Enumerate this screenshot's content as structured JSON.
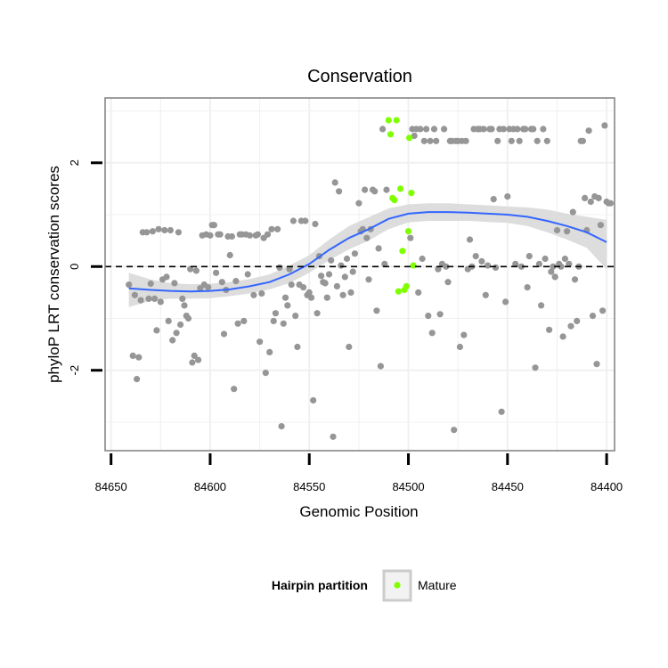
{
  "chart_data": {
    "type": "scatter",
    "title": "Conservation",
    "xlabel": "Genomic Position",
    "ylabel": "phyloP LRT conservation scores",
    "x_reversed": true,
    "xlim": [
      84653,
      84396
    ],
    "ylim": [
      -3.55,
      3.25
    ],
    "x_ticks": [
      84650,
      84600,
      84550,
      84500,
      84450,
      84400
    ],
    "y_ticks": [
      -2,
      0,
      2
    ],
    "y_ticks_rotated": true,
    "grid": true,
    "reference_line": {
      "y": 0,
      "style": "dashed",
      "color": "#000000"
    },
    "legend": {
      "title": "Hairpin partition",
      "position": "bottom",
      "entries": [
        {
          "label": "Mature",
          "color": "#7fff00"
        }
      ]
    },
    "colors": {
      "other": "#969696",
      "mature": "#7fff00",
      "smooth": "#3366ff",
      "ribbon": "#d9d9d9",
      "grid": "#f0f0f0",
      "border": "#7f7f7f"
    },
    "series": [
      {
        "points": [
          [
            84641,
            -0.35
          ],
          [
            84639,
            -1.72
          ],
          [
            84638,
            -0.55
          ],
          [
            84637,
            -2.17
          ],
          [
            84636,
            -1.75
          ],
          [
            84635,
            -0.65
          ],
          [
            84634,
            0.66
          ],
          [
            84632,
            0.66
          ],
          [
            84631,
            -0.62
          ],
          [
            84630,
            -0.33
          ],
          [
            84629,
            0.68
          ],
          [
            84628,
            -0.62
          ],
          [
            84627,
            -1.23
          ],
          [
            84626,
            0.72
          ],
          [
            84625,
            -0.68
          ],
          [
            84624,
            -0.25
          ],
          [
            84623,
            0.7
          ],
          [
            84622,
            -0.2
          ],
          [
            84621,
            -1.05
          ],
          [
            84620,
            0.7
          ],
          [
            84619,
            -1.42
          ],
          [
            84618,
            -0.32
          ],
          [
            84617,
            -1.28
          ],
          [
            84616,
            0.66
          ],
          [
            84615,
            -1.12
          ],
          [
            84614,
            -0.62
          ],
          [
            84613,
            -0.75
          ],
          [
            84612,
            -0.95
          ],
          [
            84611,
            -1.0
          ],
          [
            84610,
            -0.05
          ],
          [
            84609,
            -1.85
          ],
          [
            84608,
            -1.72
          ],
          [
            84607,
            -0.08
          ],
          [
            84606,
            -1.8
          ],
          [
            84605,
            -0.42
          ],
          [
            84604,
            0.6
          ],
          [
            84603,
            -0.35
          ],
          [
            84602,
            0.62
          ],
          [
            84601,
            -0.4
          ],
          [
            84600,
            0.6
          ],
          [
            84599,
            0.8
          ],
          [
            84598,
            0.8
          ],
          [
            84597,
            -0.12
          ],
          [
            84596,
            0.62
          ],
          [
            84595,
            0.62
          ],
          [
            84594,
            -0.3
          ],
          [
            84593,
            -1.3
          ],
          [
            84592,
            -0.45
          ],
          [
            84591,
            0.58
          ],
          [
            84590,
            0.22
          ],
          [
            84589,
            0.58
          ],
          [
            84588,
            -2.36
          ],
          [
            84587,
            -0.28
          ],
          [
            84586,
            -1.1
          ],
          [
            84585,
            0.62
          ],
          [
            84584,
            0.62
          ],
          [
            84583,
            -1.05
          ],
          [
            84582,
            0.62
          ],
          [
            84581,
            -0.15
          ],
          [
            84580,
            0.6
          ],
          [
            84578,
            -0.55
          ],
          [
            84577,
            0.6
          ],
          [
            84576,
            0.62
          ],
          [
            84575,
            -1.45
          ],
          [
            84574,
            -0.52
          ],
          [
            84573,
            0.55
          ],
          [
            84572,
            -2.05
          ],
          [
            84571,
            0.62
          ],
          [
            84570,
            -1.65
          ],
          [
            84569,
            0.72
          ],
          [
            84568,
            -1.05
          ],
          [
            84567,
            -0.9
          ],
          [
            84566,
            0.72
          ],
          [
            84565,
            -0.02
          ],
          [
            84564,
            -3.08
          ],
          [
            84563,
            -1.1
          ],
          [
            84562,
            -0.6
          ],
          [
            84561,
            -0.75
          ],
          [
            84560,
            -0.05
          ],
          [
            84559,
            -0.35
          ],
          [
            84558,
            0.88
          ],
          [
            84557,
            -0.95
          ],
          [
            84556,
            -1.55
          ],
          [
            84555,
            -0.35
          ],
          [
            84554,
            0.88
          ],
          [
            84553,
            -0.4
          ],
          [
            84552,
            0.88
          ],
          [
            84551,
            -0.55
          ],
          [
            84550,
            -0.5
          ],
          [
            84549,
            -0.6
          ],
          [
            84548,
            -2.58
          ],
          [
            84547,
            0.82
          ],
          [
            84546,
            -0.9
          ],
          [
            84545,
            0.2
          ],
          [
            84544,
            -0.18
          ],
          [
            84543,
            -0.3
          ],
          [
            84542,
            -0.32
          ],
          [
            84541,
            -0.6
          ],
          [
            84540,
            -0.15
          ],
          [
            84539,
            0.12
          ],
          [
            84538,
            -3.28
          ],
          [
            84537,
            1.62
          ],
          [
            84536,
            -0.38
          ],
          [
            84535,
            1.45
          ],
          [
            84534,
            0.02
          ],
          [
            84533,
            -0.55
          ],
          [
            84532,
            -0.2
          ],
          [
            84531,
            0.15
          ],
          [
            84530,
            -1.55
          ],
          [
            84529,
            -0.5
          ],
          [
            84528,
            -0.1
          ],
          [
            84527,
            0.25
          ],
          [
            84525,
            1.22
          ],
          [
            84524,
            0.68
          ],
          [
            84523,
            0.72
          ],
          [
            84522,
            1.48
          ],
          [
            84521,
            0.55
          ],
          [
            84520,
            -0.25
          ],
          [
            84519,
            0.72
          ],
          [
            84518,
            1.48
          ],
          [
            84517,
            1.45
          ],
          [
            84516,
            -0.85
          ],
          [
            84515,
            0.35
          ],
          [
            84514,
            -1.92
          ],
          [
            84513,
            2.65
          ],
          [
            84512,
            0.05
          ],
          [
            84511,
            1.48
          ],
          [
            84499,
            0.55
          ],
          [
            84498,
            2.65
          ],
          [
            84497,
            2.52
          ],
          [
            84496,
            2.65
          ],
          [
            84495,
            -0.5
          ],
          [
            84494,
            2.65
          ],
          [
            84493,
            0.15
          ],
          [
            84492,
            2.42
          ],
          [
            84491,
            2.65
          ],
          [
            84490,
            -0.95
          ],
          [
            84489,
            2.42
          ],
          [
            84488,
            -1.28
          ],
          [
            84487,
            2.65
          ],
          [
            84486,
            2.42
          ],
          [
            84485,
            -0.05
          ],
          [
            84484,
            -0.92
          ],
          [
            84483,
            0.05
          ],
          [
            84482,
            2.65
          ],
          [
            84481,
            0.0
          ],
          [
            84480,
            -0.3
          ],
          [
            84479,
            2.42
          ],
          [
            84478,
            2.42
          ],
          [
            84477,
            -3.15
          ],
          [
            84476,
            2.42
          ],
          [
            84475,
            2.42
          ],
          [
            84474,
            -1.55
          ],
          [
            84473,
            2.42
          ],
          [
            84472,
            -1.32
          ],
          [
            84471,
            2.42
          ],
          [
            84470,
            -0.05
          ],
          [
            84469,
            0.52
          ],
          [
            84468,
            0.0
          ],
          [
            84467,
            2.65
          ],
          [
            84466,
            0.2
          ],
          [
            84465,
            2.65
          ],
          [
            84464,
            2.65
          ],
          [
            84463,
            0.1
          ],
          [
            84462,
            2.65
          ],
          [
            84461,
            -0.55
          ],
          [
            84460,
            0.02
          ],
          [
            84459,
            2.65
          ],
          [
            84458,
            2.65
          ],
          [
            84457,
            1.3
          ],
          [
            84456,
            -0.02
          ],
          [
            84455,
            2.42
          ],
          [
            84454,
            2.65
          ],
          [
            84453,
            -2.8
          ],
          [
            84452,
            2.65
          ],
          [
            84451,
            -0.68
          ],
          [
            84450,
            1.35
          ],
          [
            84449,
            2.65
          ],
          [
            84448,
            2.42
          ],
          [
            84447,
            2.65
          ],
          [
            84446,
            0.05
          ],
          [
            84445,
            2.65
          ],
          [
            84444,
            2.42
          ],
          [
            84443,
            0.0
          ],
          [
            84442,
            2.65
          ],
          [
            84441,
            2.65
          ],
          [
            84440,
            -0.4
          ],
          [
            84439,
            0.2
          ],
          [
            84438,
            2.65
          ],
          [
            84437,
            2.65
          ],
          [
            84436,
            -1.95
          ],
          [
            84435,
            2.42
          ],
          [
            84434,
            0.05
          ],
          [
            84433,
            -0.75
          ],
          [
            84432,
            2.65
          ],
          [
            84431,
            0.15
          ],
          [
            84430,
            2.42
          ],
          [
            84429,
            -1.22
          ],
          [
            84428,
            -0.1
          ],
          [
            84427,
            0.0
          ],
          [
            84426,
            -0.2
          ],
          [
            84425,
            0.7
          ],
          [
            84424,
            0.05
          ],
          [
            84423,
            0.0
          ],
          [
            84422,
            -1.35
          ],
          [
            84421,
            0.15
          ],
          [
            84420,
            0.68
          ],
          [
            84419,
            0.05
          ],
          [
            84418,
            -1.15
          ],
          [
            84417,
            1.05
          ],
          [
            84416,
            -0.25
          ],
          [
            84415,
            -1.05
          ],
          [
            84414,
            0.0
          ],
          [
            84413,
            2.42
          ],
          [
            84412,
            2.42
          ],
          [
            84411,
            1.32
          ],
          [
            84410,
            0.7
          ],
          [
            84409,
            2.62
          ],
          [
            84408,
            1.25
          ],
          [
            84407,
            -0.95
          ],
          [
            84406,
            1.35
          ],
          [
            84405,
            -1.88
          ],
          [
            84404,
            1.32
          ],
          [
            84403,
            0.8
          ],
          [
            84402,
            -0.85
          ],
          [
            84401,
            2.72
          ],
          [
            84400,
            1.25
          ],
          [
            84399,
            1.22
          ],
          [
            84398,
            1.22
          ]
        ]
      },
      {
        "name": "Mature",
        "points": [
          [
            84510,
            2.82
          ],
          [
            84509,
            2.55
          ],
          [
            84508,
            1.32
          ],
          [
            84507,
            1.28
          ],
          [
            84506,
            2.82
          ],
          [
            84505,
            -0.48
          ],
          [
            84504,
            1.5
          ],
          [
            84503,
            0.3
          ],
          [
            84502,
            -0.45
          ],
          [
            84501,
            -0.38
          ],
          [
            84500,
            0.68
          ],
          [
            84499.5,
            2.48
          ],
          [
            84498.5,
            1.42
          ],
          [
            84497.5,
            0.02
          ]
        ]
      }
    ],
    "smooth": {
      "line": [
        [
          84641,
          -0.42
        ],
        [
          84630,
          -0.45
        ],
        [
          84620,
          -0.47
        ],
        [
          84610,
          -0.48
        ],
        [
          84600,
          -0.47
        ],
        [
          84590,
          -0.44
        ],
        [
          84580,
          -0.38
        ],
        [
          84570,
          -0.3
        ],
        [
          84560,
          -0.15
        ],
        [
          84550,
          0.05
        ],
        [
          84540,
          0.32
        ],
        [
          84530,
          0.55
        ],
        [
          84520,
          0.72
        ],
        [
          84510,
          0.92
        ],
        [
          84500,
          1.02
        ],
        [
          84490,
          1.05
        ],
        [
          84480,
          1.05
        ],
        [
          84470,
          1.04
        ],
        [
          84460,
          1.02
        ],
        [
          84450,
          1.0
        ],
        [
          84440,
          0.96
        ],
        [
          84430,
          0.88
        ],
        [
          84420,
          0.78
        ],
        [
          84410,
          0.66
        ],
        [
          84400,
          0.47
        ]
      ],
      "band": [
        [
          84641,
          -0.12,
          -0.78
        ],
        [
          84630,
          -0.25,
          -0.66
        ],
        [
          84620,
          -0.32,
          -0.62
        ],
        [
          84610,
          -0.34,
          -0.62
        ],
        [
          84600,
          -0.33,
          -0.61
        ],
        [
          84590,
          -0.3,
          -0.57
        ],
        [
          84580,
          -0.24,
          -0.52
        ],
        [
          84570,
          -0.15,
          -0.44
        ],
        [
          84560,
          0.02,
          -0.32
        ],
        [
          84550,
          0.22,
          -0.12
        ],
        [
          84540,
          0.52,
          0.12
        ],
        [
          84530,
          0.78,
          0.33
        ],
        [
          84520,
          0.95,
          0.5
        ],
        [
          84510,
          1.12,
          0.72
        ],
        [
          84500,
          1.2,
          0.85
        ],
        [
          84490,
          1.22,
          0.88
        ],
        [
          84480,
          1.22,
          0.88
        ],
        [
          84470,
          1.2,
          0.88
        ],
        [
          84460,
          1.18,
          0.86
        ],
        [
          84450,
          1.16,
          0.84
        ],
        [
          84440,
          1.14,
          0.78
        ],
        [
          84430,
          1.1,
          0.66
        ],
        [
          84420,
          1.02,
          0.52
        ],
        [
          84410,
          0.96,
          0.36
        ],
        [
          84400,
          0.9,
          -0.05
        ]
      ]
    }
  }
}
